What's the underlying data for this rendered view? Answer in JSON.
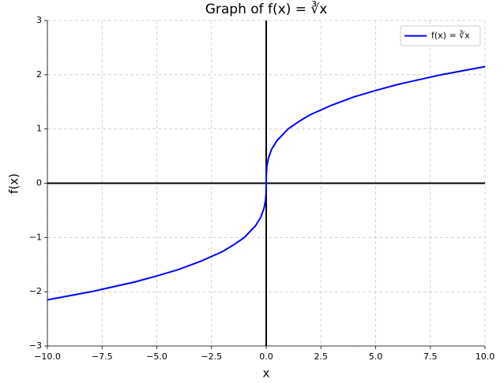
{
  "chart_data": {
    "type": "line",
    "title": "Graph of f(x) = ∛x",
    "x_label": "x",
    "y_label": "f(x)",
    "x": [
      -10,
      -8,
      -6,
      -5,
      -4,
      -3,
      -2,
      -1.5,
      -1,
      -0.5,
      -0.25,
      -0.1,
      -0.03,
      -0.005,
      0,
      0.005,
      0.03,
      0.1,
      0.25,
      0.5,
      1,
      1.5,
      2,
      3,
      4,
      5,
      6,
      8,
      10
    ],
    "series": [
      {
        "name": "f(x) = ∛x",
        "color": "#0000ff",
        "values": [
          -2.15,
          -2,
          -1.82,
          -1.71,
          -1.59,
          -1.44,
          -1.26,
          -1.14,
          -1,
          -0.79,
          -0.63,
          -0.46,
          -0.31,
          -0.17,
          0,
          0.17,
          0.31,
          0.46,
          0.63,
          0.79,
          1,
          1.14,
          1.26,
          1.44,
          1.59,
          1.71,
          1.82,
          2,
          2.15
        ]
      }
    ],
    "xlim": [
      -10,
      10
    ],
    "xticks": [
      {
        "value": -10,
        "label": "−10.0"
      },
      {
        "value": -7.5,
        "label": "−7.5"
      },
      {
        "value": -5,
        "label": "−5.0"
      },
      {
        "value": -2.5,
        "label": "−2.5"
      },
      {
        "value": 0,
        "label": "0.0"
      },
      2.5,
      {
        "value": 5,
        "label": "5.0"
      },
      {
        "value": 7.5,
        "label": "7.5"
      },
      {
        "value": 10,
        "label": "10.0"
      }
    ],
    "ylim": [
      -3,
      3
    ],
    "yticks": [
      {
        "value": -3,
        "label": "−3"
      },
      {
        "value": -2,
        "label": "−2"
      },
      {
        "value": -1,
        "label": "−1"
      },
      0,
      1,
      2,
      3
    ],
    "grid": true,
    "legend": "upper right"
  }
}
